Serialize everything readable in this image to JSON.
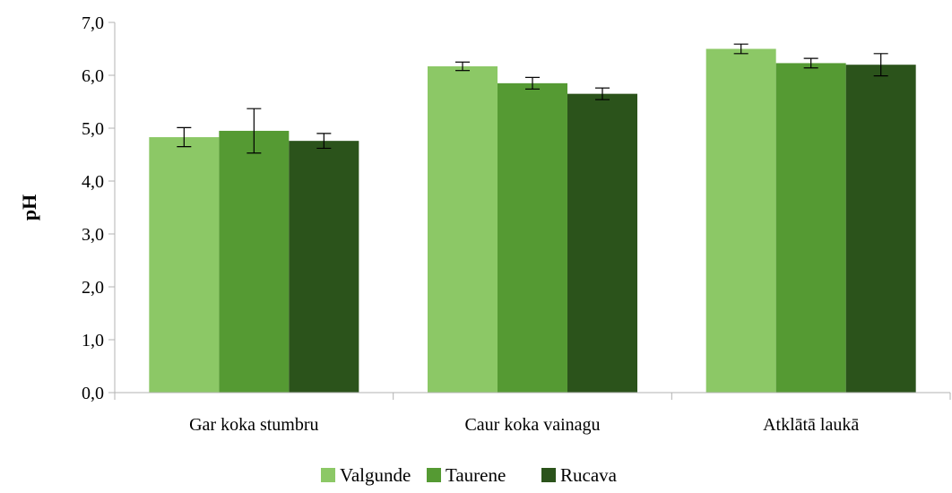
{
  "chart_data": {
    "type": "bar",
    "title": "",
    "xlabel": "",
    "ylabel": "pH",
    "ylim": [
      0,
      7
    ],
    "yticks": [
      0,
      1,
      2,
      3,
      4,
      5,
      6,
      7
    ],
    "ytick_labels": [
      "0,0",
      "1,0",
      "2,0",
      "3,0",
      "4,0",
      "5,0",
      "6,0",
      "7,0"
    ],
    "categories": [
      "Gar koka stumbru",
      "Caur koka vainagu",
      "Atklātā laukā"
    ],
    "series": [
      {
        "name": "Valgunde",
        "color": "#8cc866",
        "values": [
          4.83,
          6.17,
          6.5
        ],
        "errors": [
          0.18,
          0.08,
          0.09
        ]
      },
      {
        "name": "Taurene",
        "color": "#559a33",
        "values": [
          4.95,
          5.85,
          6.23
        ],
        "errors": [
          0.42,
          0.11,
          0.09
        ]
      },
      {
        "name": "Rucava",
        "color": "#2b531b",
        "values": [
          4.76,
          5.65,
          6.2
        ],
        "errors": [
          0.14,
          0.11,
          0.21
        ]
      }
    ],
    "grid": false,
    "legend_position": "bottom"
  }
}
